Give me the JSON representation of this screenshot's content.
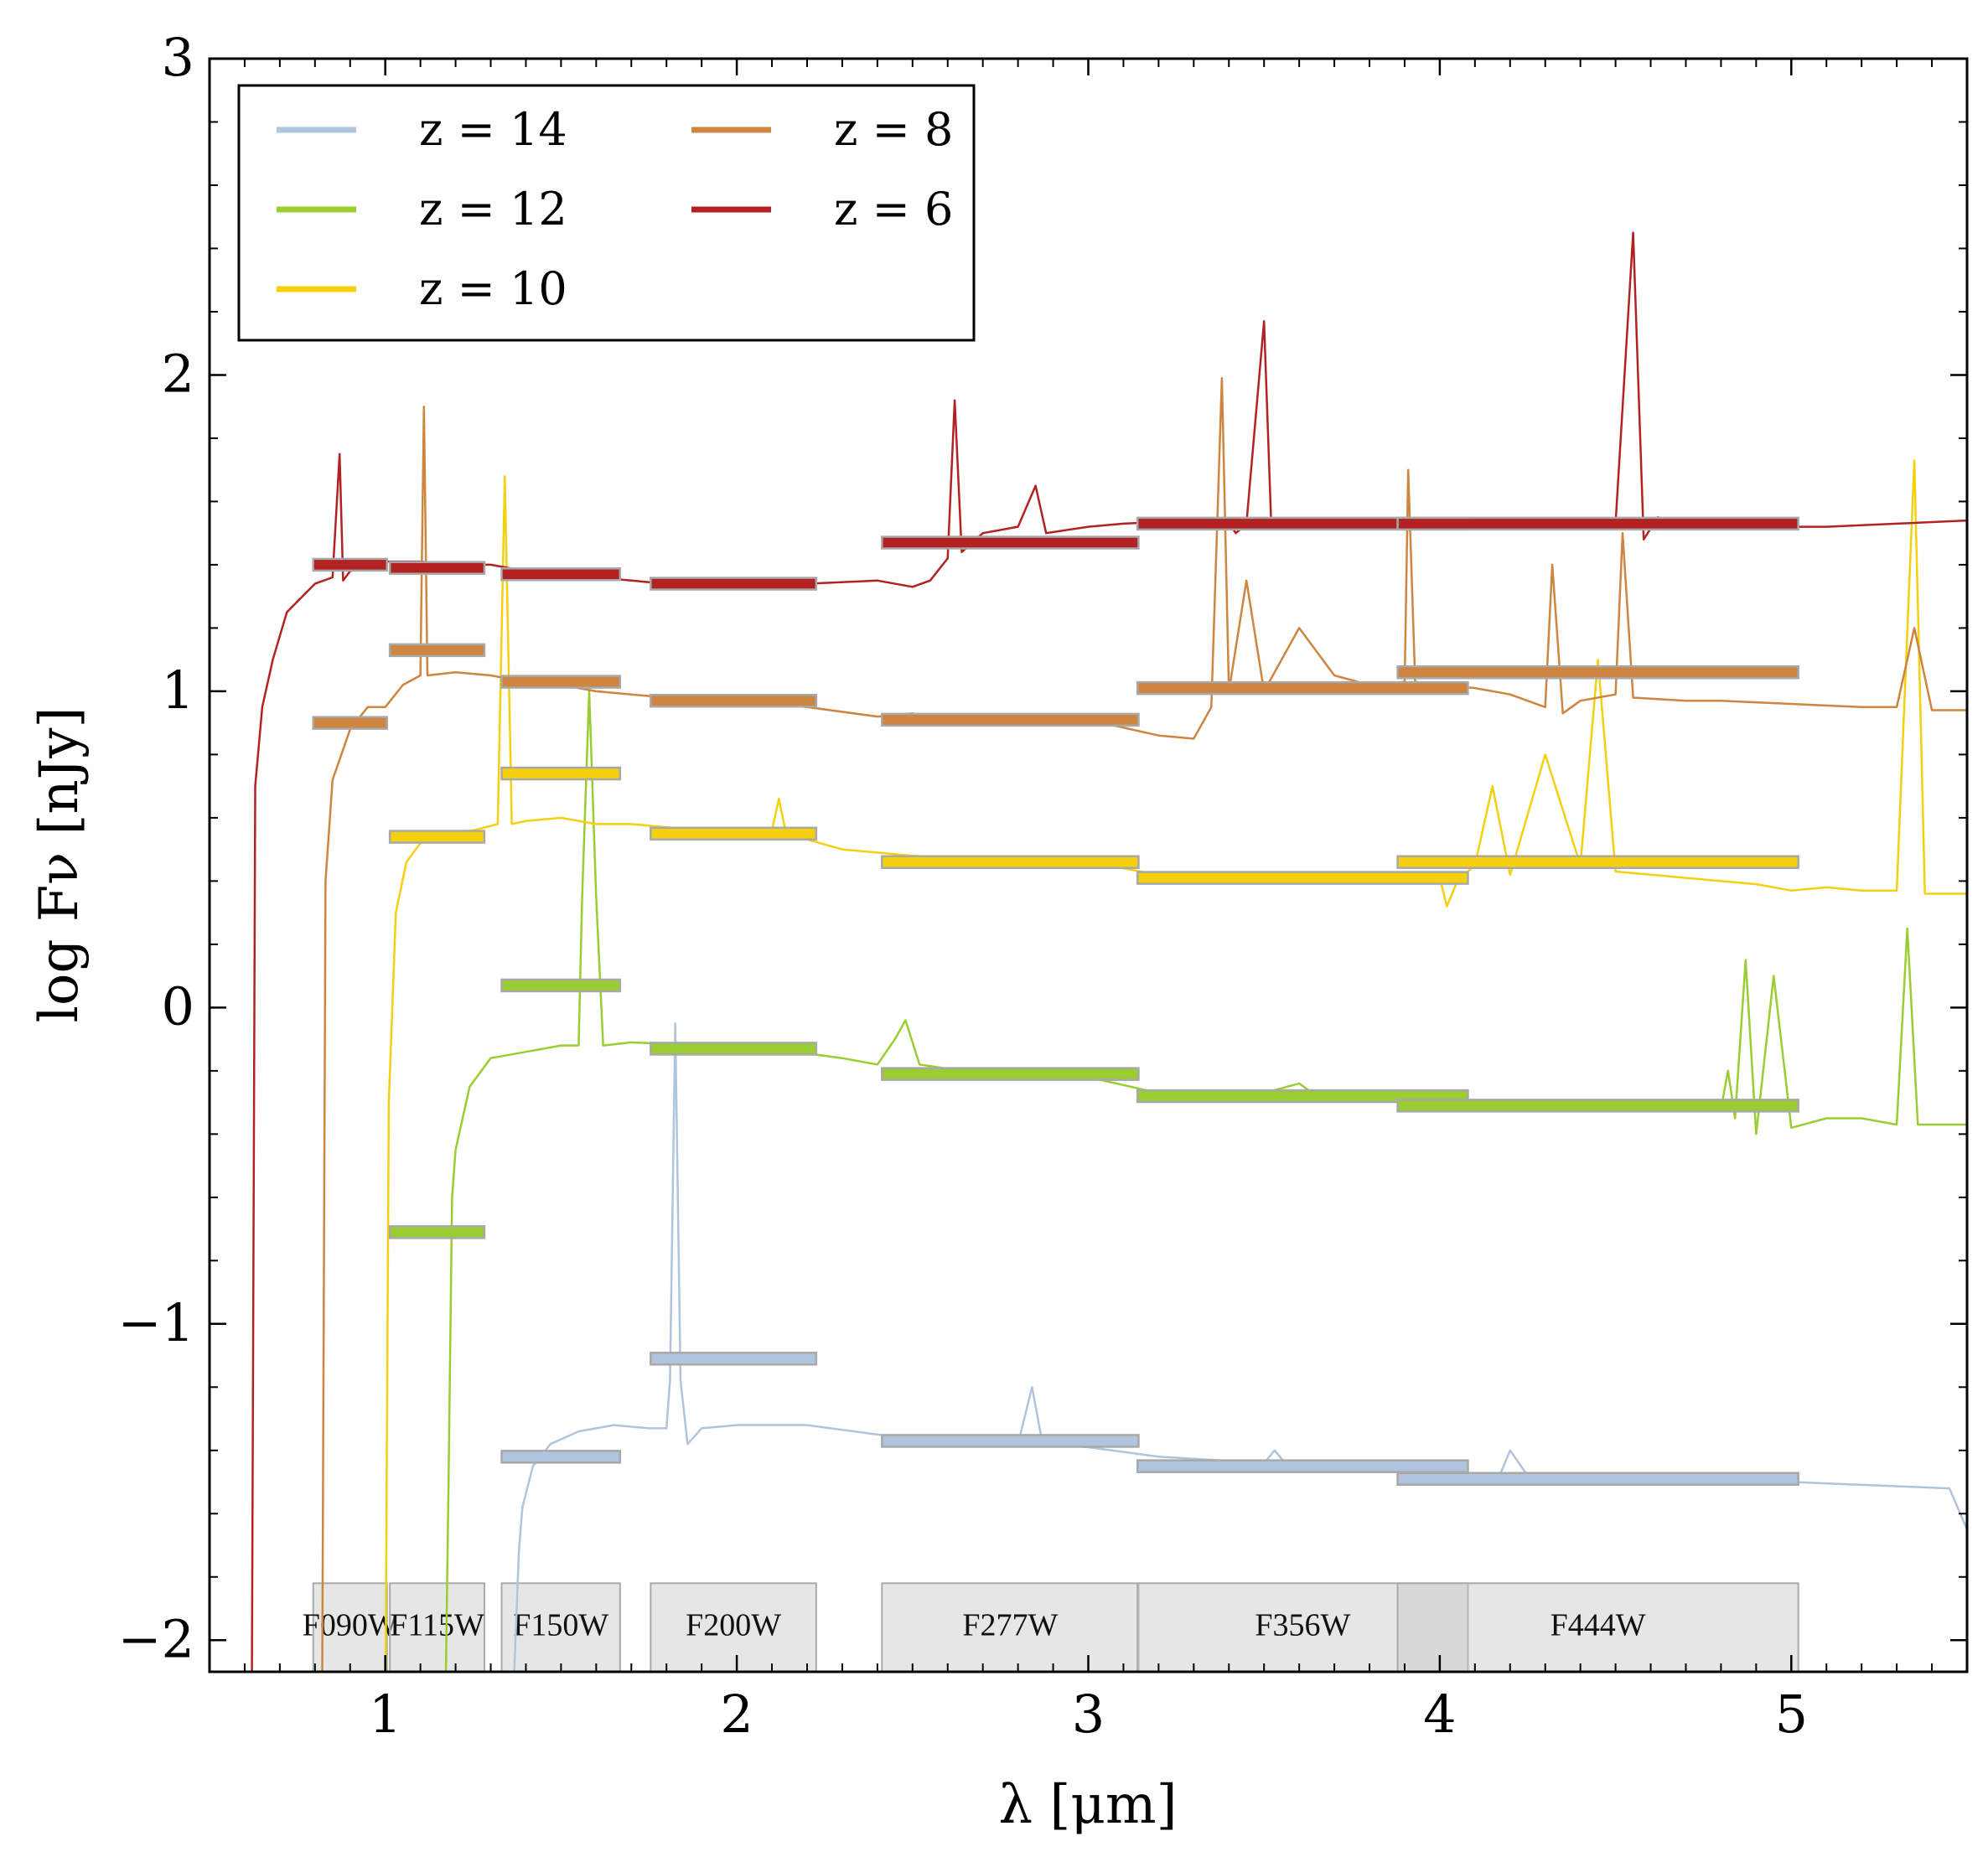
{
  "chart_data": {
    "type": "line",
    "xlabel": "λ [μm]",
    "ylabel": "log Fν [nJy]",
    "xlim": [
      0.5,
      5.5
    ],
    "ylim": [
      -2.1,
      3.0
    ],
    "xticks": [
      1,
      2,
      3,
      4,
      5
    ],
    "xtick_labels": [
      "1",
      "2",
      "3",
      "4",
      "5"
    ],
    "yticks": [
      -2,
      -1,
      0,
      1,
      2,
      3
    ],
    "ytick_labels": [
      "−2",
      "−1",
      "0",
      "1",
      "2",
      "3"
    ],
    "legend_position": "top-left",
    "filters": [
      {
        "name": "F090W",
        "range": [
          0.795,
          1.005
        ]
      },
      {
        "name": "F115W",
        "range": [
          1.013,
          1.282
        ]
      },
      {
        "name": "F150W",
        "range": [
          1.331,
          1.668
        ]
      },
      {
        "name": "F200W",
        "range": [
          1.755,
          2.226
        ]
      },
      {
        "name": "F277W",
        "range": [
          2.413,
          3.143
        ]
      },
      {
        "name": "F356W",
        "range": [
          3.14,
          4.08
        ]
      },
      {
        "name": "F444W",
        "range": [
          3.88,
          5.02
        ]
      }
    ],
    "series": [
      {
        "name": "z = 14",
        "color": "#b0c4de",
        "spectrum": [
          [
            1.36,
            -2.3
          ],
          [
            1.38,
            -1.72
          ],
          [
            1.39,
            -1.58
          ],
          [
            1.42,
            -1.45
          ],
          [
            1.47,
            -1.38
          ],
          [
            1.55,
            -1.34
          ],
          [
            1.65,
            -1.32
          ],
          [
            1.75,
            -1.33
          ],
          [
            1.8,
            -1.33
          ],
          [
            1.81,
            -1.18
          ],
          [
            1.825,
            -0.05
          ],
          [
            1.84,
            -1.18
          ],
          [
            1.86,
            -1.38
          ],
          [
            1.9,
            -1.33
          ],
          [
            2.0,
            -1.32
          ],
          [
            2.2,
            -1.32
          ],
          [
            2.4,
            -1.35
          ],
          [
            2.6,
            -1.37
          ],
          [
            2.8,
            -1.38
          ],
          [
            2.84,
            -1.2
          ],
          [
            2.87,
            -1.38
          ],
          [
            3.0,
            -1.39
          ],
          [
            3.2,
            -1.42
          ],
          [
            3.5,
            -1.44
          ],
          [
            3.53,
            -1.4
          ],
          [
            3.56,
            -1.44
          ],
          [
            4.0,
            -1.47
          ],
          [
            4.17,
            -1.48
          ],
          [
            4.2,
            -1.4
          ],
          [
            4.25,
            -1.48
          ],
          [
            4.5,
            -1.49
          ],
          [
            5.0,
            -1.5
          ],
          [
            5.45,
            -1.52
          ],
          [
            5.5,
            -1.65
          ]
        ],
        "photometry": [
          {
            "filter": "F150W",
            "value": -1.42
          },
          {
            "filter": "F200W",
            "value": -1.11
          },
          {
            "filter": "F277W",
            "value": -1.37
          },
          {
            "filter": "F356W",
            "value": -1.45
          },
          {
            "filter": "F444W",
            "value": -1.49
          }
        ]
      },
      {
        "name": "z = 12",
        "color": "#9acd32",
        "spectrum": [
          [
            1.17,
            -2.3
          ],
          [
            1.18,
            -1.5
          ],
          [
            1.19,
            -0.6
          ],
          [
            1.2,
            -0.45
          ],
          [
            1.24,
            -0.25
          ],
          [
            1.3,
            -0.16
          ],
          [
            1.4,
            -0.14
          ],
          [
            1.5,
            -0.12
          ],
          [
            1.55,
            -0.12
          ],
          [
            1.56,
            0.35
          ],
          [
            1.58,
            1.0
          ],
          [
            1.6,
            0.35
          ],
          [
            1.62,
            -0.12
          ],
          [
            1.7,
            -0.11
          ],
          [
            1.9,
            -0.12
          ],
          [
            2.1,
            -0.13
          ],
          [
            2.3,
            -0.16
          ],
          [
            2.4,
            -0.18
          ],
          [
            2.45,
            -0.1
          ],
          [
            2.48,
            -0.04
          ],
          [
            2.52,
            -0.18
          ],
          [
            2.7,
            -0.21
          ],
          [
            3.0,
            -0.22
          ],
          [
            3.2,
            -0.27
          ],
          [
            3.5,
            -0.27
          ],
          [
            3.6,
            -0.24
          ],
          [
            3.65,
            -0.28
          ],
          [
            4.0,
            -0.3
          ],
          [
            4.5,
            -0.31
          ],
          [
            4.8,
            -0.32
          ],
          [
            4.82,
            -0.2
          ],
          [
            4.84,
            -0.35
          ],
          [
            4.87,
            0.15
          ],
          [
            4.9,
            -0.4
          ],
          [
            4.95,
            0.1
          ],
          [
            5.0,
            -0.38
          ],
          [
            5.1,
            -0.35
          ],
          [
            5.2,
            -0.35
          ],
          [
            5.3,
            -0.37
          ],
          [
            5.33,
            0.25
          ],
          [
            5.36,
            -0.37
          ],
          [
            5.5,
            -0.37
          ]
        ],
        "photometry": [
          {
            "filter": "F115W",
            "value": -0.71
          },
          {
            "filter": "F150W",
            "value": 0.07
          },
          {
            "filter": "F200W",
            "value": -0.13
          },
          {
            "filter": "F277W",
            "value": -0.21
          },
          {
            "filter": "F356W",
            "value": -0.28
          },
          {
            "filter": "F444W",
            "value": -0.31
          }
        ]
      },
      {
        "name": "z = 10",
        "color": "#f5d00f",
        "spectrum": [
          [
            1.0,
            -2.3
          ],
          [
            1.01,
            -0.3
          ],
          [
            1.03,
            0.3
          ],
          [
            1.06,
            0.46
          ],
          [
            1.1,
            0.52
          ],
          [
            1.15,
            0.55
          ],
          [
            1.25,
            0.56
          ],
          [
            1.32,
            0.58
          ],
          [
            1.34,
            1.68
          ],
          [
            1.36,
            0.58
          ],
          [
            1.4,
            0.59
          ],
          [
            1.5,
            0.6
          ],
          [
            1.6,
            0.58
          ],
          [
            1.7,
            0.58
          ],
          [
            1.8,
            0.57
          ],
          [
            2.0,
            0.55
          ],
          [
            2.1,
            0.56
          ],
          [
            2.12,
            0.66
          ],
          [
            2.14,
            0.55
          ],
          [
            2.3,
            0.5
          ],
          [
            2.5,
            0.48
          ],
          [
            2.7,
            0.47
          ],
          [
            2.9,
            0.46
          ],
          [
            3.0,
            0.46
          ],
          [
            3.3,
            0.4
          ],
          [
            3.6,
            0.41
          ],
          [
            4.0,
            0.41
          ],
          [
            4.02,
            0.32
          ],
          [
            4.05,
            0.4
          ],
          [
            4.1,
            0.45
          ],
          [
            4.15,
            0.7
          ],
          [
            4.2,
            0.42
          ],
          [
            4.3,
            0.8
          ],
          [
            4.4,
            0.45
          ],
          [
            4.45,
            1.1
          ],
          [
            4.5,
            0.43
          ],
          [
            4.6,
            0.42
          ],
          [
            4.7,
            0.41
          ],
          [
            4.8,
            0.4
          ],
          [
            4.9,
            0.39
          ],
          [
            5.0,
            0.37
          ],
          [
            5.1,
            0.38
          ],
          [
            5.2,
            0.37
          ],
          [
            5.3,
            0.37
          ],
          [
            5.35,
            1.73
          ],
          [
            5.38,
            0.36
          ],
          [
            5.5,
            0.36
          ]
        ],
        "photometry": [
          {
            "filter": "F115W",
            "value": 0.54
          },
          {
            "filter": "F150W",
            "value": 0.74
          },
          {
            "filter": "F200W",
            "value": 0.55
          },
          {
            "filter": "F277W",
            "value": 0.46
          },
          {
            "filter": "F356W",
            "value": 0.41
          },
          {
            "filter": "F444W",
            "value": 0.46
          }
        ]
      },
      {
        "name": "z = 8",
        "color": "#cd853f",
        "spectrum": [
          [
            0.82,
            -2.3
          ],
          [
            0.83,
            0.4
          ],
          [
            0.85,
            0.72
          ],
          [
            0.9,
            0.88
          ],
          [
            0.95,
            0.95
          ],
          [
            1.0,
            0.95
          ],
          [
            1.05,
            1.02
          ],
          [
            1.1,
            1.05
          ],
          [
            1.11,
            1.9
          ],
          [
            1.12,
            1.05
          ],
          [
            1.2,
            1.06
          ],
          [
            1.3,
            1.05
          ],
          [
            1.4,
            1.03
          ],
          [
            1.5,
            1.02
          ],
          [
            1.6,
            1.0
          ],
          [
            1.7,
            0.99
          ],
          [
            1.8,
            0.98
          ],
          [
            2.0,
            0.97
          ],
          [
            2.2,
            0.95
          ],
          [
            2.4,
            0.92
          ],
          [
            2.5,
            0.93
          ],
          [
            2.6,
            0.9
          ],
          [
            2.8,
            0.9
          ],
          [
            3.0,
            0.91
          ],
          [
            3.2,
            0.86
          ],
          [
            3.3,
            0.85
          ],
          [
            3.35,
            0.95
          ],
          [
            3.38,
            1.99
          ],
          [
            3.4,
            1.0
          ],
          [
            3.45,
            1.35
          ],
          [
            3.5,
            1.0
          ],
          [
            3.6,
            1.2
          ],
          [
            3.7,
            1.05
          ],
          [
            3.8,
            1.02
          ],
          [
            3.9,
            1.03
          ],
          [
            3.91,
            1.7
          ],
          [
            3.93,
            1.03
          ],
          [
            4.0,
            1.02
          ],
          [
            4.1,
            1.01
          ],
          [
            4.2,
            0.99
          ],
          [
            4.3,
            0.95
          ],
          [
            4.32,
            1.4
          ],
          [
            4.35,
            0.93
          ],
          [
            4.4,
            0.97
          ],
          [
            4.5,
            0.99
          ],
          [
            4.52,
            1.5
          ],
          [
            4.55,
            0.98
          ],
          [
            4.7,
            0.97
          ],
          [
            4.8,
            0.97
          ],
          [
            5.0,
            0.96
          ],
          [
            5.2,
            0.95
          ],
          [
            5.3,
            0.95
          ],
          [
            5.35,
            1.2
          ],
          [
            5.4,
            0.94
          ],
          [
            5.5,
            0.94
          ]
        ],
        "photometry": [
          {
            "filter": "F090W",
            "value": 0.9
          },
          {
            "filter": "F115W",
            "value": 1.13
          },
          {
            "filter": "F150W",
            "value": 1.03
          },
          {
            "filter": "F200W",
            "value": 0.97
          },
          {
            "filter": "F277W",
            "value": 0.91
          },
          {
            "filter": "F356W",
            "value": 1.01
          },
          {
            "filter": "F444W",
            "value": 1.06
          }
        ]
      },
      {
        "name": "z = 6",
        "color": "#b22222",
        "spectrum": [
          [
            0.62,
            -2.3
          ],
          [
            0.63,
            0.7
          ],
          [
            0.65,
            0.95
          ],
          [
            0.68,
            1.1
          ],
          [
            0.72,
            1.25
          ],
          [
            0.8,
            1.34
          ],
          [
            0.85,
            1.36
          ],
          [
            0.87,
            1.75
          ],
          [
            0.88,
            1.35
          ],
          [
            0.9,
            1.38
          ],
          [
            1.0,
            1.41
          ],
          [
            1.1,
            1.41
          ],
          [
            1.2,
            1.4
          ],
          [
            1.3,
            1.4
          ],
          [
            1.4,
            1.38
          ],
          [
            1.5,
            1.37
          ],
          [
            1.6,
            1.36
          ],
          [
            1.7,
            1.35
          ],
          [
            1.8,
            1.34
          ],
          [
            2.0,
            1.34
          ],
          [
            2.2,
            1.34
          ],
          [
            2.4,
            1.35
          ],
          [
            2.5,
            1.33
          ],
          [
            2.55,
            1.35
          ],
          [
            2.6,
            1.42
          ],
          [
            2.62,
            1.92
          ],
          [
            2.64,
            1.44
          ],
          [
            2.7,
            1.5
          ],
          [
            2.8,
            1.52
          ],
          [
            2.85,
            1.65
          ],
          [
            2.88,
            1.5
          ],
          [
            3.0,
            1.52
          ],
          [
            3.1,
            1.53
          ],
          [
            3.3,
            1.54
          ],
          [
            3.4,
            1.53
          ],
          [
            3.42,
            1.5
          ],
          [
            3.45,
            1.53
          ],
          [
            3.5,
            2.17
          ],
          [
            3.52,
            1.54
          ],
          [
            3.7,
            1.53
          ],
          [
            3.9,
            1.53
          ],
          [
            4.1,
            1.52
          ],
          [
            4.3,
            1.52
          ],
          [
            4.5,
            1.53
          ],
          [
            4.55,
            2.45
          ],
          [
            4.58,
            1.48
          ],
          [
            4.62,
            1.55
          ],
          [
            4.7,
            1.53
          ],
          [
            4.9,
            1.52
          ],
          [
            5.1,
            1.52
          ],
          [
            5.3,
            1.53
          ],
          [
            5.5,
            1.54
          ]
        ],
        "photometry": [
          {
            "filter": "F090W",
            "value": 1.4
          },
          {
            "filter": "F115W",
            "value": 1.39
          },
          {
            "filter": "F150W",
            "value": 1.37
          },
          {
            "filter": "F200W",
            "value": 1.34
          },
          {
            "filter": "F277W",
            "value": 1.47
          },
          {
            "filter": "F356W",
            "value": 1.53
          },
          {
            "filter": "F444W",
            "value": 1.53
          }
        ]
      }
    ]
  }
}
